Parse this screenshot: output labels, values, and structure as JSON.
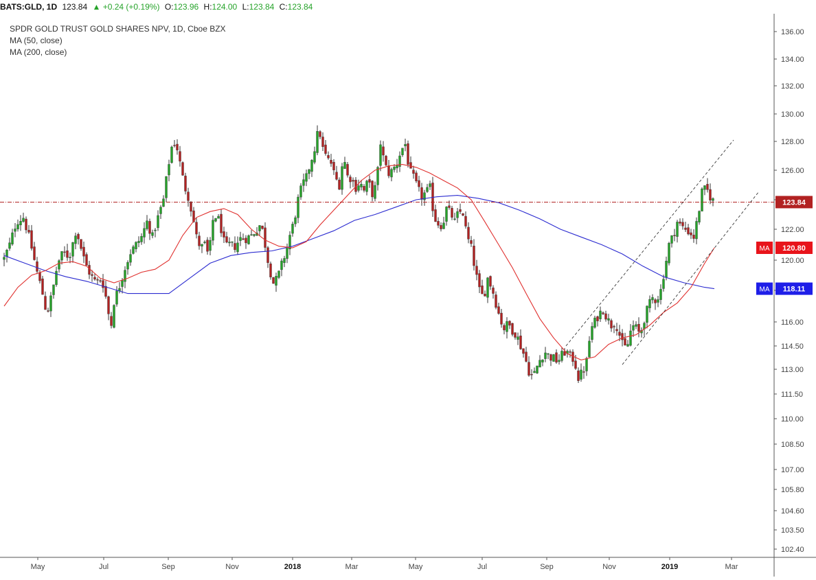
{
  "header": {
    "symbol": "BATS:GLD, 1D",
    "last": "123.84",
    "arrow": "▲",
    "change": "+0.24 (+0.19%)",
    "o_label": "O:",
    "o_value": "123.96",
    "h_label": "H:",
    "h_value": "124.00",
    "l_label": "L:",
    "l_value": "123.84",
    "c_label": "C:",
    "c_value": "123.84"
  },
  "legend": {
    "title": "SPDR GOLD TRUST GOLD SHARES NPV, 1D, Cboe BZX",
    "ma50": "MA (50, close)",
    "ma200": "MA (200, close)"
  },
  "colors": {
    "up": "#26a32a",
    "down": "#b22222",
    "ma50": "#e0302e",
    "ma200": "#2b2bd0",
    "price_line": "#b22222",
    "ma_badge": "#e8141b",
    "ma200_badge": "#1e1ee8",
    "axis_text": "#444444"
  },
  "chart_data": {
    "type": "candlestick",
    "title": "SPDR GOLD TRUST GOLD SHARES NPV, 1D, Cboe BZX",
    "y_ticks": [
      "136.00",
      "134.00",
      "132.00",
      "130.00",
      "128.00",
      "126.00",
      "124.00",
      "122.00",
      "120.00",
      "118.00",
      "116.00",
      "114.50",
      "113.00",
      "111.50",
      "110.00",
      "108.50",
      "107.00",
      "105.80",
      "104.60",
      "103.50",
      "102.40"
    ],
    "y_tick_values": [
      136.0,
      134.0,
      132.0,
      130.0,
      128.0,
      126.0,
      124.0,
      122.0,
      120.0,
      118.0,
      116.0,
      114.5,
      113.0,
      111.5,
      110.0,
      108.5,
      107.0,
      105.8,
      104.6,
      103.5,
      102.4
    ],
    "x_ticks": [
      "May",
      "Jul",
      "Sep",
      "Nov",
      "2018",
      "Mar",
      "May",
      "Jul",
      "Sep",
      "Nov",
      "2019",
      "Mar"
    ],
    "x_tick_bold": [
      false,
      false,
      false,
      false,
      true,
      false,
      false,
      false,
      false,
      false,
      true,
      false
    ],
    "last_price": 123.84,
    "last_price_label": "123.84",
    "ma50_label": "MA",
    "ma50_value": "120.80",
    "ma50_last": 120.8,
    "ma200_label": "MA",
    "ma200_value": "118.11",
    "ma200_last": 118.11,
    "close_path": [
      [
        0,
        120.1
      ],
      [
        8,
        121.0
      ],
      [
        18,
        122.5
      ],
      [
        28,
        122.8
      ],
      [
        38,
        121.2
      ],
      [
        48,
        119.2
      ],
      [
        55,
        118.0
      ],
      [
        62,
        116.5
      ],
      [
        70,
        117.8
      ],
      [
        78,
        119.8
      ],
      [
        86,
        120.5
      ],
      [
        95,
        120.2
      ],
      [
        105,
        122.0
      ],
      [
        112,
        120.8
      ],
      [
        118,
        119.8
      ],
      [
        126,
        119.0
      ],
      [
        134,
        118.5
      ],
      [
        142,
        118.8
      ],
      [
        150,
        117.2
      ],
      [
        155,
        115.5
      ],
      [
        160,
        117.3
      ],
      [
        168,
        118.3
      ],
      [
        176,
        119.5
      ],
      [
        184,
        120.5
      ],
      [
        192,
        121.0
      ],
      [
        200,
        121.5
      ],
      [
        208,
        122.5
      ],
      [
        216,
        121.5
      ],
      [
        224,
        122.8
      ],
      [
        232,
        124.0
      ],
      [
        238,
        126.0
      ],
      [
        244,
        127.6
      ],
      [
        250,
        128.0
      ],
      [
        256,
        126.5
      ],
      [
        262,
        125.0
      ],
      [
        268,
        124.2
      ],
      [
        274,
        123.0
      ],
      [
        280,
        121.5
      ],
      [
        286,
        120.8
      ],
      [
        292,
        121.0
      ],
      [
        298,
        120.2
      ],
      [
        304,
        122.6
      ],
      [
        310,
        123.0
      ],
      [
        316,
        122.0
      ],
      [
        322,
        120.8
      ],
      [
        328,
        121.0
      ],
      [
        336,
        120.9
      ],
      [
        344,
        121.4
      ],
      [
        352,
        121.4
      ],
      [
        360,
        121.6
      ],
      [
        368,
        122.0
      ],
      [
        374,
        122.4
      ],
      [
        380,
        121.0
      ],
      [
        386,
        119.5
      ],
      [
        392,
        118.5
      ],
      [
        398,
        118.8
      ],
      [
        404,
        119.7
      ],
      [
        410,
        120.5
      ],
      [
        416,
        121.6
      ],
      [
        422,
        122.5
      ],
      [
        428,
        124.0
      ],
      [
        434,
        125.0
      ],
      [
        440,
        125.5
      ],
      [
        446,
        126.5
      ],
      [
        452,
        127.5
      ],
      [
        458,
        129.0
      ],
      [
        464,
        127.5
      ],
      [
        470,
        126.8
      ],
      [
        476,
        126.5
      ],
      [
        482,
        125.5
      ],
      [
        488,
        125.0
      ],
      [
        494,
        127.0
      ],
      [
        500,
        125.6
      ],
      [
        506,
        125.4
      ],
      [
        512,
        124.8
      ],
      [
        518,
        125.2
      ],
      [
        524,
        124.6
      ],
      [
        530,
        125.3
      ],
      [
        536,
        124.4
      ],
      [
        542,
        125.0
      ],
      [
        548,
        127.9
      ],
      [
        554,
        126.4
      ],
      [
        560,
        125.8
      ],
      [
        566,
        126.0
      ],
      [
        572,
        126.5
      ],
      [
        578,
        127.4
      ],
      [
        584,
        127.8
      ],
      [
        590,
        126.0
      ],
      [
        596,
        125.5
      ],
      [
        602,
        124.8
      ],
      [
        608,
        124.2
      ],
      [
        614,
        124.5
      ],
      [
        620,
        124.8
      ],
      [
        626,
        122.8
      ],
      [
        632,
        122.4
      ],
      [
        638,
        122.2
      ],
      [
        644,
        123.4
      ],
      [
        650,
        123.1
      ],
      [
        656,
        122.5
      ],
      [
        662,
        123.2
      ],
      [
        668,
        123.1
      ],
      [
        674,
        121.5
      ],
      [
        680,
        120.8
      ],
      [
        686,
        119.3
      ],
      [
        692,
        118.0
      ],
      [
        698,
        117.5
      ],
      [
        704,
        118.8
      ],
      [
        710,
        118.2
      ],
      [
        716,
        117.2
      ],
      [
        722,
        116.2
      ],
      [
        728,
        115.6
      ],
      [
        734,
        115.9
      ],
      [
        740,
        115.5
      ],
      [
        746,
        115.2
      ],
      [
        752,
        114.5
      ],
      [
        758,
        113.8
      ],
      [
        764,
        112.9
      ],
      [
        770,
        112.5
      ],
      [
        776,
        113.2
      ],
      [
        782,
        113.8
      ],
      [
        788,
        114.1
      ],
      [
        794,
        113.8
      ],
      [
        800,
        113.7
      ],
      [
        806,
        113.5
      ],
      [
        812,
        113.9
      ],
      [
        818,
        114.2
      ],
      [
        824,
        113.8
      ],
      [
        830,
        113.6
      ],
      [
        836,
        112.5
      ],
      [
        842,
        112.8
      ],
      [
        848,
        113.5
      ],
      [
        854,
        115.5
      ],
      [
        860,
        116.0
      ],
      [
        866,
        116.5
      ],
      [
        872,
        116.8
      ],
      [
        878,
        116.2
      ],
      [
        884,
        115.8
      ],
      [
        890,
        116.0
      ],
      [
        896,
        115.2
      ],
      [
        902,
        114.3
      ],
      [
        908,
        114.6
      ],
      [
        914,
        115.8
      ],
      [
        920,
        115.6
      ],
      [
        926,
        115.2
      ],
      [
        932,
        116.2
      ],
      [
        938,
        117.0
      ],
      [
        944,
        117.5
      ],
      [
        950,
        117.4
      ],
      [
        956,
        118.0
      ],
      [
        962,
        119.5
      ],
      [
        968,
        121.0
      ],
      [
        974,
        121.6
      ],
      [
        980,
        122.5
      ],
      [
        986,
        122.2
      ],
      [
        992,
        122.0
      ],
      [
        998,
        121.8
      ],
      [
        1004,
        121.5
      ],
      [
        1010,
        122.8
      ],
      [
        1016,
        124.5
      ],
      [
        1022,
        124.8
      ],
      [
        1028,
        124.2
      ],
      [
        1034,
        123.84
      ]
    ],
    "ma50_path": [
      [
        0,
        117.0
      ],
      [
        20,
        118.2
      ],
      [
        40,
        119.0
      ],
      [
        60,
        119.3
      ],
      [
        80,
        119.8
      ],
      [
        100,
        119.9
      ],
      [
        120,
        119.6
      ],
      [
        140,
        118.8
      ],
      [
        160,
        118.5
      ],
      [
        180,
        118.8
      ],
      [
        200,
        119.2
      ],
      [
        220,
        119.4
      ],
      [
        240,
        120.0
      ],
      [
        260,
        121.6
      ],
      [
        280,
        122.8
      ],
      [
        300,
        123.2
      ],
      [
        320,
        123.4
      ],
      [
        340,
        123.0
      ],
      [
        360,
        122.0
      ],
      [
        380,
        121.3
      ],
      [
        400,
        120.9
      ],
      [
        420,
        120.8
      ],
      [
        440,
        121.2
      ],
      [
        460,
        122.3
      ],
      [
        480,
        123.3
      ],
      [
        500,
        124.3
      ],
      [
        520,
        125.3
      ],
      [
        540,
        126.0
      ],
      [
        560,
        126.3
      ],
      [
        580,
        126.4
      ],
      [
        600,
        126.2
      ],
      [
        620,
        125.8
      ],
      [
        640,
        125.3
      ],
      [
        660,
        124.8
      ],
      [
        680,
        124.0
      ],
      [
        700,
        122.5
      ],
      [
        720,
        121.0
      ],
      [
        740,
        119.5
      ],
      [
        760,
        117.8
      ],
      [
        780,
        116.2
      ],
      [
        800,
        115.0
      ],
      [
        820,
        114.0
      ],
      [
        840,
        113.6
      ],
      [
        860,
        113.8
      ],
      [
        880,
        114.6
      ],
      [
        900,
        115.0
      ],
      [
        920,
        115.2
      ],
      [
        940,
        115.8
      ],
      [
        960,
        116.6
      ],
      [
        980,
        117.2
      ],
      [
        1000,
        118.2
      ],
      [
        1020,
        119.8
      ],
      [
        1034,
        120.8
      ]
    ],
    "ma200_path": [
      [
        0,
        120.3
      ],
      [
        30,
        119.8
      ],
      [
        60,
        119.3
      ],
      [
        90,
        118.9
      ],
      [
        120,
        118.6
      ],
      [
        150,
        118.2
      ],
      [
        180,
        117.8
      ],
      [
        210,
        117.8
      ],
      [
        240,
        117.8
      ],
      [
        270,
        118.8
      ],
      [
        300,
        119.8
      ],
      [
        330,
        120.3
      ],
      [
        360,
        120.5
      ],
      [
        390,
        120.6
      ],
      [
        420,
        120.9
      ],
      [
        450,
        121.4
      ],
      [
        480,
        121.9
      ],
      [
        510,
        122.6
      ],
      [
        540,
        123.0
      ],
      [
        570,
        123.5
      ],
      [
        600,
        124.0
      ],
      [
        630,
        124.2
      ],
      [
        660,
        124.3
      ],
      [
        690,
        124.1
      ],
      [
        720,
        123.8
      ],
      [
        750,
        123.3
      ],
      [
        780,
        122.7
      ],
      [
        810,
        122.0
      ],
      [
        840,
        121.5
      ],
      [
        870,
        121.0
      ],
      [
        900,
        120.4
      ],
      [
        930,
        119.6
      ],
      [
        960,
        118.9
      ],
      [
        990,
        118.5
      ],
      [
        1020,
        118.2
      ],
      [
        1034,
        118.11
      ]
    ]
  }
}
